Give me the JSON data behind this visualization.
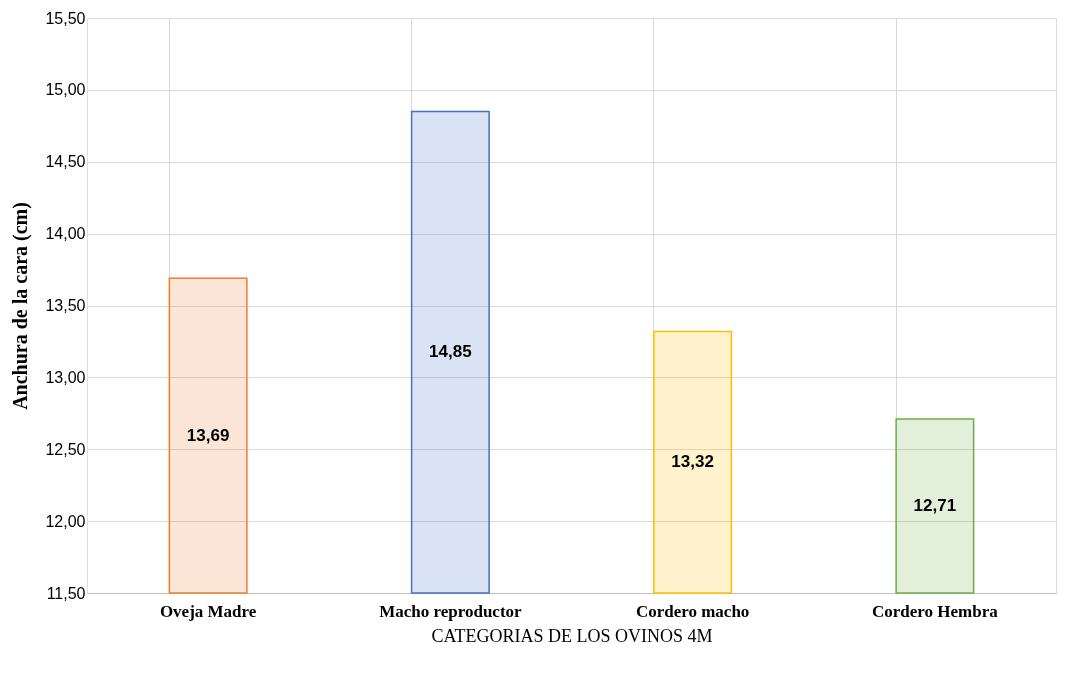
{
  "chart_data": {
    "type": "bar",
    "xlabel": "CATEGORIAS DE LOS OVINOS 4M",
    "ylabel": "Anchura de la cara (cm)",
    "categories": [
      "Oveja Madre",
      "Macho reproductor",
      "Cordero macho",
      "Cordero Hembra"
    ],
    "values": [
      13.69,
      14.85,
      13.32,
      12.71
    ],
    "colors": [
      "#ed7d31",
      "#4472c4",
      "#ffc000",
      "#70ad47"
    ],
    "value_labels": [
      "13,69",
      "14,85",
      "13,32",
      "12,71"
    ],
    "ylim": [
      11.5,
      15.5
    ],
    "yticks": [
      {
        "value": 11.5,
        "label": "11,50"
      },
      {
        "value": 12.0,
        "label": "12,00"
      },
      {
        "value": 12.5,
        "label": "12,50"
      },
      {
        "value": 13.0,
        "label": "13,00"
      },
      {
        "value": 13.5,
        "label": "13,50"
      },
      {
        "value": 14.0,
        "label": "14,00"
      },
      {
        "value": 14.5,
        "label": "14,50"
      },
      {
        "value": 15.0,
        "label": "15,00"
      },
      {
        "value": 15.5,
        "label": "15,50"
      }
    ],
    "grid": true
  }
}
